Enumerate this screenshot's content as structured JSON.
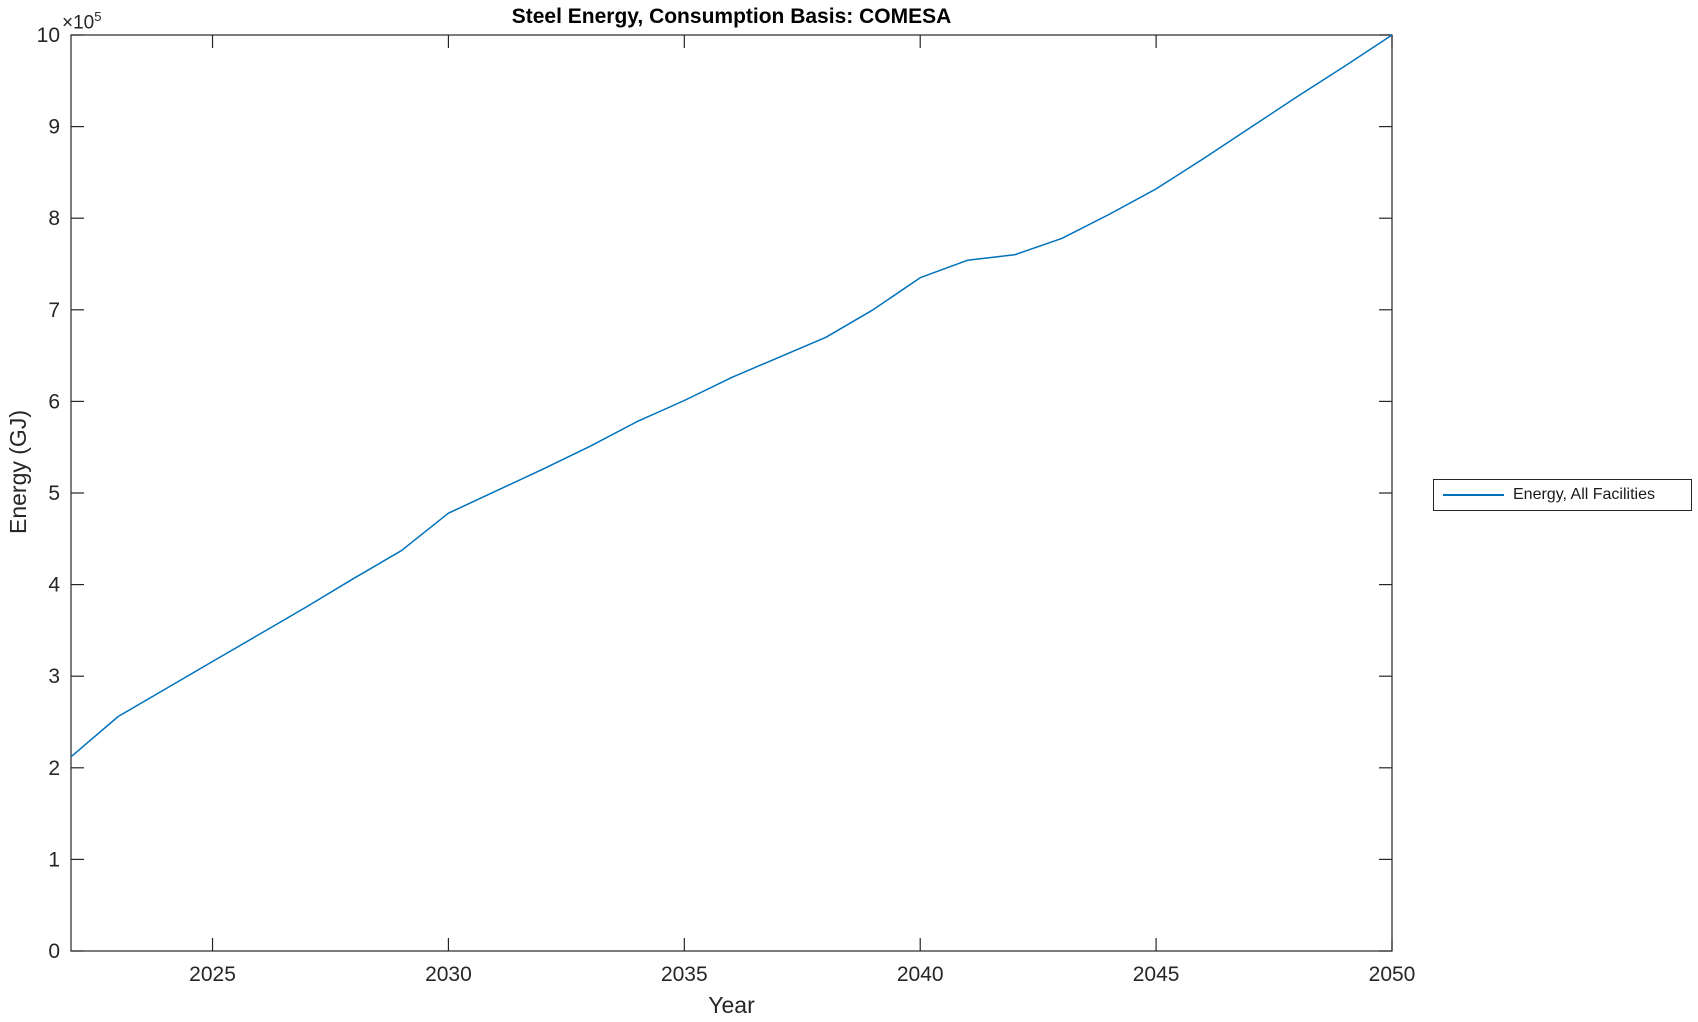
{
  "figure": {
    "background": "#ffffff"
  },
  "chart_data": {
    "type": "line",
    "title": "Steel Energy, Consumption Basis: COMESA",
    "xlabel": "Year",
    "ylabel": "Energy (GJ)",
    "y_multiplier": {
      "base": "×10",
      "exponent": "5"
    },
    "xlim": [
      2022,
      2050
    ],
    "ylim": [
      0,
      1000000
    ],
    "grid": false,
    "box": true,
    "axis_color": "#262626",
    "tick_direction": "in",
    "x_ticks": {
      "values": [
        2025,
        2030,
        2035,
        2040,
        2045,
        2050
      ],
      "labels": [
        "2025",
        "2030",
        "2035",
        "2040",
        "2045",
        "2050"
      ]
    },
    "y_ticks": {
      "values": [
        0,
        100000,
        200000,
        300000,
        400000,
        500000,
        600000,
        700000,
        800000,
        900000,
        1000000
      ],
      "labels": [
        "0",
        "1",
        "2",
        "3",
        "4",
        "5",
        "6",
        "7",
        "8",
        "9",
        "10"
      ]
    },
    "legend": {
      "position": "right-outside",
      "entries": [
        "Energy, All Facilities"
      ]
    },
    "series": [
      {
        "name": "Energy, All Facilities",
        "color": "#0072BD",
        "x": [
          2022,
          2023,
          2024,
          2025,
          2026,
          2027,
          2028,
          2029,
          2030,
          2031,
          2032,
          2033,
          2034,
          2035,
          2036,
          2037,
          2038,
          2039,
          2040,
          2041,
          2042,
          2043,
          2044,
          2045,
          2046,
          2047,
          2048,
          2049,
          2050
        ],
        "y": [
          212000,
          256000,
          286000,
          316000,
          346000,
          376000,
          407000,
          437000,
          478000,
          502000,
          526000,
          551000,
          578000,
          601000,
          626000,
          648000,
          670000,
          700000,
          735000,
          754000,
          760000,
          778000,
          804000,
          832000,
          865000,
          899000,
          933000,
          966000,
          1000000
        ]
      }
    ]
  }
}
